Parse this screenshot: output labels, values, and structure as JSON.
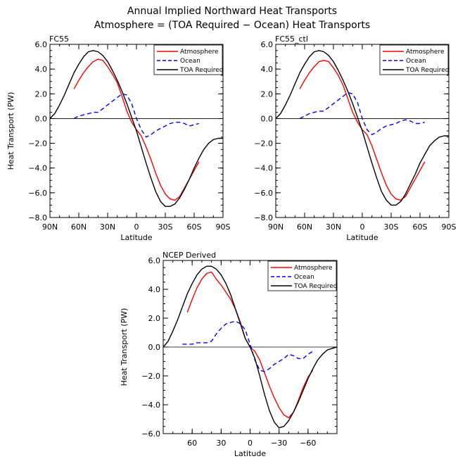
{
  "figure": {
    "title_line1": "Annual Implied Northward Heat Transports",
    "title_line2": "Atmosphere = (TOA Required − Ocean) Heat Transports"
  },
  "chart_data": [
    {
      "type": "line",
      "panel_label": "FC55",
      "xlabel": "Latitude",
      "ylabel": "Heat Transport (PW)",
      "xlim": [
        90,
        -90
      ],
      "ylim": [
        -8,
        6
      ],
      "x_tick_values": [
        90,
        60,
        30,
        0,
        -30,
        -60,
        -90
      ],
      "x_tick_labels": [
        "90N",
        "60N",
        "30N",
        "0",
        "30S",
        "60S",
        "90S"
      ],
      "y_tick_values": [
        -8,
        -6,
        -4,
        -2,
        0,
        2,
        4,
        6
      ],
      "y_tick_labels": [
        "−8.0",
        "−6.0",
        "−4.0",
        "−2.0",
        "0.0",
        "2.0",
        "4.0",
        "6.0"
      ],
      "legend_position": "top-right",
      "series": [
        {
          "name": "Atmosphere",
          "color": "#ff0000",
          "style": "solid",
          "x": [
            65,
            60,
            55,
            50,
            45,
            40,
            35,
            30,
            25,
            20,
            15,
            10,
            5,
            0,
            -5,
            -10,
            -15,
            -20,
            -25,
            -30,
            -35,
            -40,
            -45,
            -50,
            -55,
            -60,
            -65
          ],
          "y": [
            2.4,
            3.1,
            3.7,
            4.2,
            4.6,
            4.8,
            4.7,
            4.2,
            3.6,
            2.9,
            1.8,
            0.6,
            -0.3,
            -0.9,
            -1.4,
            -2.3,
            -3.3,
            -4.4,
            -5.4,
            -6.1,
            -6.5,
            -6.6,
            -6.3,
            -5.6,
            -4.9,
            -4.2,
            -3.5
          ]
        },
        {
          "name": "Ocean",
          "color": "#0000ff",
          "style": "dashed",
          "x": [
            65,
            60,
            55,
            50,
            45,
            40,
            35,
            30,
            25,
            20,
            15,
            10,
            5,
            0,
            -5,
            -10,
            -15,
            -20,
            -25,
            -30,
            -35,
            -40,
            -45,
            -50,
            -55,
            -60,
            -65
          ],
          "y": [
            0.0,
            0.2,
            0.3,
            0.4,
            0.5,
            0.5,
            0.8,
            1.1,
            1.4,
            1.7,
            2.0,
            1.9,
            1.2,
            0.0,
            -0.9,
            -1.5,
            -1.3,
            -1.0,
            -0.8,
            -0.6,
            -0.4,
            -0.3,
            -0.3,
            -0.4,
            -0.6,
            -0.5,
            -0.4
          ]
        },
        {
          "name": "TOA Required",
          "color": "#000000",
          "style": "solid",
          "x": [
            90,
            85,
            80,
            75,
            70,
            65,
            60,
            55,
            50,
            45,
            40,
            35,
            30,
            25,
            20,
            15,
            10,
            5,
            0,
            -5,
            -10,
            -15,
            -20,
            -25,
            -30,
            -35,
            -40,
            -45,
            -50,
            -55,
            -60,
            -65,
            -70,
            -75,
            -80,
            -85,
            -90
          ],
          "y": [
            0.0,
            0.4,
            1.1,
            1.9,
            2.8,
            3.7,
            4.4,
            5.0,
            5.4,
            5.5,
            5.4,
            5.1,
            4.6,
            3.9,
            3.1,
            2.2,
            1.2,
            0.1,
            -1.0,
            -2.3,
            -3.6,
            -4.8,
            -5.9,
            -6.7,
            -7.1,
            -7.1,
            -6.9,
            -6.4,
            -5.7,
            -4.9,
            -4.0,
            -3.2,
            -2.5,
            -2.0,
            -1.7,
            -1.6,
            -1.6
          ]
        }
      ]
    },
    {
      "type": "line",
      "panel_label": "FC55_ctl",
      "xlabel": "Latitude",
      "ylabel": "",
      "xlim": [
        90,
        -90
      ],
      "ylim": [
        -8,
        6
      ],
      "x_tick_values": [
        90,
        60,
        30,
        0,
        -30,
        -60,
        -90
      ],
      "x_tick_labels": [
        "90N",
        "60N",
        "30N",
        "0",
        "30S",
        "60S",
        "90S"
      ],
      "y_tick_values": [
        -8,
        -6,
        -4,
        -2,
        0,
        2,
        4,
        6
      ],
      "y_tick_labels": [
        "−8.0",
        "−6.0",
        "−4.0",
        "−2.0",
        "0.0",
        "2.0",
        "4.0",
        "6.0"
      ],
      "legend_position": "top-right",
      "series": [
        {
          "name": "Atmosphere",
          "color": "#ff0000",
          "style": "solid",
          "x": [
            65,
            60,
            55,
            50,
            45,
            40,
            35,
            30,
            25,
            20,
            15,
            10,
            5,
            0,
            -5,
            -10,
            -15,
            -20,
            -25,
            -30,
            -35,
            -40,
            -45,
            -50,
            -55,
            -60,
            -65
          ],
          "y": [
            2.4,
            3.1,
            3.7,
            4.2,
            4.6,
            4.7,
            4.6,
            4.1,
            3.5,
            2.7,
            1.6,
            0.5,
            -0.3,
            -0.9,
            -1.3,
            -2.2,
            -3.3,
            -4.4,
            -5.4,
            -6.1,
            -6.5,
            -6.6,
            -6.3,
            -5.6,
            -4.9,
            -4.2,
            -3.5
          ]
        },
        {
          "name": "Ocean",
          "color": "#0000ff",
          "style": "dashed",
          "x": [
            65,
            60,
            55,
            50,
            45,
            40,
            35,
            30,
            25,
            20,
            15,
            10,
            5,
            0,
            -5,
            -10,
            -15,
            -20,
            -25,
            -30,
            -35,
            -40,
            -45,
            -50,
            -55,
            -60,
            -65
          ],
          "y": [
            0.0,
            0.2,
            0.4,
            0.5,
            0.6,
            0.6,
            0.9,
            1.2,
            1.5,
            1.8,
            2.1,
            2.0,
            1.3,
            0.0,
            -0.9,
            -1.3,
            -1.1,
            -0.8,
            -0.6,
            -0.5,
            -0.4,
            -0.2,
            -0.1,
            -0.2,
            -0.4,
            -0.4,
            -0.3
          ]
        },
        {
          "name": "TOA Required",
          "color": "#000000",
          "style": "solid",
          "x": [
            90,
            85,
            80,
            75,
            70,
            65,
            60,
            55,
            50,
            45,
            40,
            35,
            30,
            25,
            20,
            15,
            10,
            5,
            0,
            -5,
            -10,
            -15,
            -20,
            -25,
            -30,
            -35,
            -40,
            -45,
            -50,
            -55,
            -60,
            -65,
            -70,
            -75,
            -80,
            -85,
            -90
          ],
          "y": [
            0.0,
            0.4,
            1.1,
            1.9,
            2.8,
            3.7,
            4.4,
            5.0,
            5.4,
            5.5,
            5.4,
            5.1,
            4.6,
            3.9,
            3.1,
            2.2,
            1.2,
            0.1,
            -1.0,
            -2.3,
            -3.6,
            -4.8,
            -5.9,
            -6.6,
            -7.0,
            -7.0,
            -6.7,
            -6.1,
            -5.3,
            -4.5,
            -3.6,
            -2.9,
            -2.2,
            -1.8,
            -1.5,
            -1.4,
            -1.4
          ]
        }
      ]
    },
    {
      "type": "line",
      "panel_label": "NCEP Derived",
      "xlabel": "Latitude",
      "ylabel": "Heat Transport (PW)",
      "xlim": [
        90,
        -90
      ],
      "ylim": [
        -6,
        6
      ],
      "x_tick_values": [
        60,
        30,
        0,
        -30,
        -60
      ],
      "x_tick_labels": [
        "60",
        "30",
        "0",
        "−30",
        "−60"
      ],
      "y_tick_values": [
        -6,
        -4,
        -2,
        0,
        2,
        4,
        6
      ],
      "y_tick_labels": [
        "−6.0",
        "−4.0",
        "−2.0",
        "0.0",
        "2.0",
        "4.0",
        "6.0"
      ],
      "legend_position": "top-right",
      "series": [
        {
          "name": "Atmosphere",
          "color": "#ff0000",
          "style": "solid",
          "x": [
            65,
            60,
            55,
            50,
            45,
            40,
            35,
            30,
            25,
            20,
            15,
            10,
            5,
            0,
            -5,
            -10,
            -15,
            -20,
            -25,
            -30,
            -35,
            -40,
            -45,
            -50,
            -55,
            -60,
            -65
          ],
          "y": [
            2.4,
            3.3,
            4.1,
            4.7,
            5.1,
            5.2,
            4.7,
            4.3,
            3.8,
            3.3,
            2.6,
            1.7,
            0.6,
            0.0,
            -0.3,
            -0.9,
            -1.8,
            -2.7,
            -3.5,
            -4.2,
            -4.7,
            -4.9,
            -4.5,
            -3.7,
            -2.8,
            -2.1,
            -1.6
          ]
        },
        {
          "name": "Ocean",
          "color": "#0000ff",
          "style": "dashed",
          "x": [
            70,
            65,
            60,
            55,
            50,
            45,
            40,
            35,
            30,
            25,
            20,
            15,
            10,
            5,
            0,
            -5,
            -10,
            -15,
            -20,
            -25,
            -30,
            -35,
            -40,
            -45,
            -50,
            -55,
            -60,
            -65
          ],
          "y": [
            0.2,
            0.2,
            0.2,
            0.3,
            0.3,
            0.3,
            0.4,
            0.9,
            1.3,
            1.6,
            1.7,
            1.8,
            1.6,
            1.2,
            0.2,
            -0.9,
            -1.6,
            -1.7,
            -1.5,
            -1.2,
            -1.0,
            -0.8,
            -0.5,
            -0.6,
            -0.8,
            -0.8,
            -0.5,
            -0.3
          ]
        },
        {
          "name": "TOA Required",
          "color": "#000000",
          "style": "solid",
          "x": [
            90,
            85,
            80,
            75,
            70,
            65,
            60,
            55,
            50,
            45,
            40,
            35,
            30,
            25,
            20,
            15,
            10,
            5,
            0,
            -5,
            -10,
            -15,
            -20,
            -25,
            -30,
            -35,
            -40,
            -45,
            -50,
            -55,
            -60,
            -65,
            -70,
            -75,
            -80,
            -85,
            -90
          ],
          "y": [
            0.0,
            0.4,
            1.1,
            1.9,
            2.8,
            3.7,
            4.4,
            5.0,
            5.4,
            5.6,
            5.6,
            5.4,
            5.0,
            4.4,
            3.6,
            2.6,
            1.6,
            0.6,
            0.0,
            -0.8,
            -2.0,
            -3.3,
            -4.4,
            -5.2,
            -5.6,
            -5.5,
            -5.1,
            -4.5,
            -3.8,
            -3.0,
            -2.2,
            -1.5,
            -0.9,
            -0.5,
            -0.2,
            -0.1,
            0.0
          ]
        }
      ]
    }
  ]
}
